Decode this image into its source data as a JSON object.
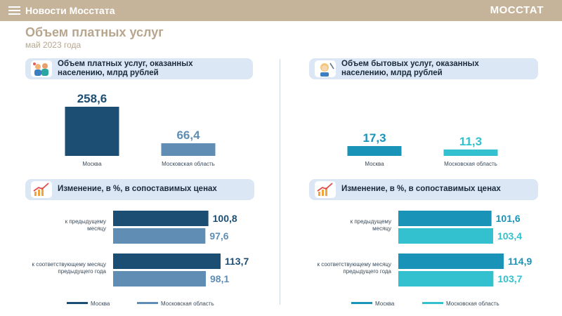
{
  "header": {
    "news_label": "Новости Мосстата",
    "brand": "МОССТАТ"
  },
  "page": {
    "title": "Объем платных услуг",
    "subtitle": "май 2023 года"
  },
  "colors": {
    "moscow_paid": "#1c4e73",
    "region_paid": "#5f8db3",
    "moscow_household": "#1a93b8",
    "region_household": "#33c1cf",
    "header_bar": "#c5b49a",
    "pill_bg": "#dbe7f5"
  },
  "panels": {
    "left_volume": {
      "title_line1": "Объем платных услуг, оказанных",
      "title_line2": "населению, млрд рублей",
      "icon": "people-services-icon"
    },
    "right_volume": {
      "title_line1": "Объем бытовых услуг, оказанных",
      "title_line2": "населению, млрд рублей",
      "icon": "hairdresser-icon"
    },
    "left_change": {
      "title": "Изменение, в %, в сопоставимых ценах",
      "icon": "growth-chart-icon"
    },
    "right_change": {
      "title": "Изменение, в %, в сопоставимых ценах",
      "icon": "growth-chart-icon"
    }
  },
  "chart_data": [
    {
      "id": "paid_volume",
      "type": "bar",
      "categories": [
        "Москва",
        "Московская область"
      ],
      "values": [
        258.6,
        66.4
      ],
      "value_labels": [
        "258,6",
        "66,4"
      ]
    },
    {
      "id": "household_volume",
      "type": "bar",
      "categories": [
        "Москва",
        "Московская область"
      ],
      "values": [
        17.3,
        11.3
      ],
      "value_labels": [
        "17,3",
        "11,3"
      ]
    },
    {
      "id": "paid_change",
      "type": "bar",
      "orientation": "horizontal",
      "categories": [
        [
          "к предыдущему",
          "месяцу"
        ],
        [
          "к соответствующему месяцу",
          "предыдущего года"
        ]
      ],
      "series": [
        {
          "name": "Москва",
          "values": [
            100.8,
            113.7
          ],
          "value_labels": [
            "100,8",
            "113,7"
          ]
        },
        {
          "name": "Московская область",
          "values": [
            97.6,
            98.1
          ],
          "value_labels": [
            "97,6",
            "98,1"
          ]
        }
      ]
    },
    {
      "id": "household_change",
      "type": "bar",
      "orientation": "horizontal",
      "categories": [
        [
          "к предыдущему",
          "месяцу"
        ],
        [
          "к соответствующему месяцу",
          "предыдущего года"
        ]
      ],
      "series": [
        {
          "name": "Москва",
          "values": [
            101.6,
            114.9
          ],
          "value_labels": [
            "101,6",
            "114,9"
          ]
        },
        {
          "name": "Московская область",
          "values": [
            103.4,
            103.7
          ],
          "value_labels": [
            "103,4",
            "103,7"
          ]
        }
      ]
    }
  ]
}
